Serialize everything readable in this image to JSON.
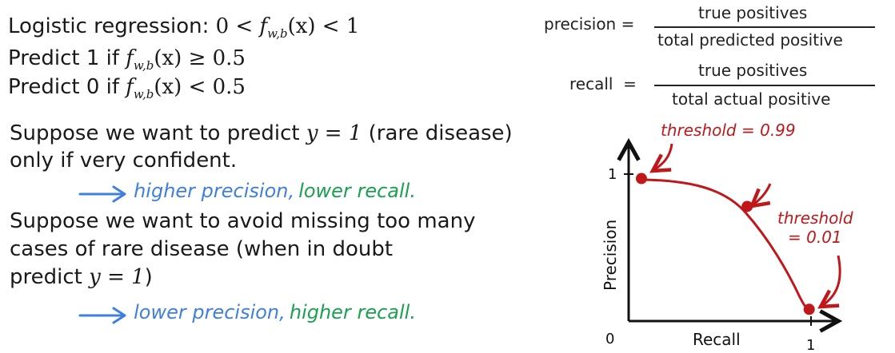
{
  "logistic": {
    "label": "Logistic regression:",
    "range_left": "0 <",
    "range_right": "< 1",
    "f": "f",
    "sub": "w,b",
    "arg": "(x)",
    "predict1_label": "Predict 1 if",
    "predict1_cond": "≥ 0.5",
    "predict0_label": "Predict 0 if",
    "predict0_cond": "< 0.5"
  },
  "formulas": {
    "precision_label": "precision",
    "precision_numerator": "true positives",
    "precision_denominator": "total predicted positive",
    "recall_label": "recall",
    "recall_numerator": "true positives",
    "recall_denominator": "total actual positive",
    "equals": "="
  },
  "case1": {
    "line1_pre": "Suppose we want to predict",
    "line1_math": "y = 1",
    "line1_post": "(rare disease)",
    "line2": "only if very confident.",
    "note_blue": "higher precision,",
    "note_green": "lower recall."
  },
  "case2": {
    "line1": "Suppose we want to avoid missing too many",
    "line2": "cases of rare disease (when in doubt",
    "line3_pre": "predict",
    "line3_math": "y = 1",
    "line3_post": ")",
    "note_blue": "lower precision,",
    "note_green": "higher recall."
  },
  "colors": {
    "blue": "#3f7fe0",
    "green": "#1aa04f",
    "red": "#c0171b",
    "text": "#1a1a1a"
  },
  "chart_data": {
    "type": "line",
    "xlabel": "Recall",
    "ylabel": "Precision",
    "xlim": [
      0,
      1
    ],
    "ylim": [
      0,
      1
    ],
    "x_tick_labels": [
      "0",
      "1"
    ],
    "y_tick_labels": [
      "1"
    ],
    "points": [
      {
        "x": 0.07,
        "y": 0.97
      },
      {
        "x": 0.65,
        "y": 0.78
      },
      {
        "x": 0.99,
        "y": 0.08
      }
    ],
    "annotations": {
      "high": "threshold = 0.99",
      "low_line1": "threshold",
      "low_line2": "= 0.01"
    }
  }
}
